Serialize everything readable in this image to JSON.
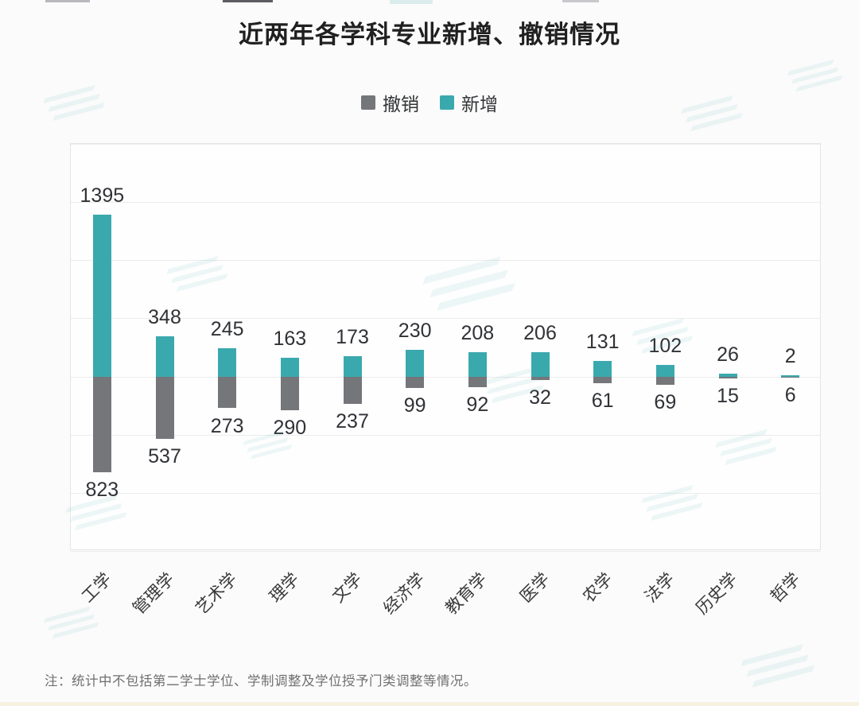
{
  "page": {
    "title": "近两年各学科专业新增、撤销情况",
    "note": "注：统计中不包括第二学士学位、学制调整及学位授予门类调整等情况。"
  },
  "legend": {
    "items": [
      {
        "label": "撤销",
        "color": "#74767a"
      },
      {
        "label": "新增",
        "color": "#3aa9ad"
      }
    ]
  },
  "colors": {
    "new": "#3aa9ad",
    "cancelled": "#74767a",
    "value_label": "#303236",
    "gridline": "#ebecec",
    "background": "#fbfbfb"
  },
  "chart_data": {
    "type": "bar",
    "subtype": "diverging-stacked-vertical",
    "title": "近两年各学科专业新增、撤销情况",
    "categories": [
      "工学",
      "管理学",
      "艺术学",
      "理学",
      "文学",
      "经济学",
      "教育学",
      "医学",
      "农学",
      "法学",
      "历史学",
      "哲学"
    ],
    "series": [
      {
        "name": "新增",
        "color": "#3aa9ad",
        "direction": "up",
        "values": [
          1395,
          348,
          245,
          163,
          173,
          230,
          208,
          206,
          131,
          102,
          26,
          2
        ]
      },
      {
        "name": "撤销",
        "color": "#74767a",
        "direction": "down",
        "values": [
          823,
          537,
          273,
          290,
          237,
          99,
          92,
          32,
          61,
          69,
          15,
          6
        ]
      }
    ],
    "xlabel": "",
    "ylabel": "",
    "ylim": [
      -1500,
      2000
    ],
    "grid_step": 500,
    "grid": true,
    "legend_position": "top",
    "value_labels": true,
    "x_label_rotation": -45
  }
}
